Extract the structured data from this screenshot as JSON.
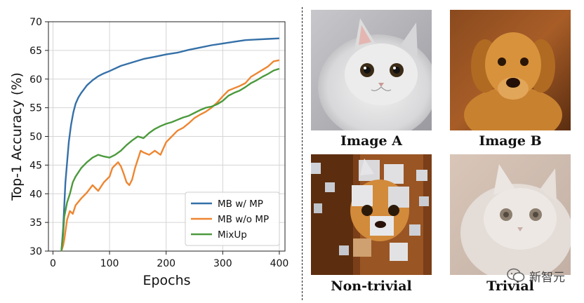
{
  "chart_data": {
    "type": "line",
    "xlabel": "Epochs",
    "ylabel": "Top-1 Accuracy (%)",
    "xlim": [
      -8,
      410
    ],
    "ylim": [
      30,
      70
    ],
    "xticks": [
      0,
      100,
      200,
      300,
      400
    ],
    "yticks": [
      30,
      35,
      40,
      45,
      50,
      55,
      60,
      65,
      70
    ],
    "grid": true,
    "legend_position": "bottom-right",
    "series": [
      {
        "name": "MB w/ MP",
        "color": "#3570a8",
        "x": [
          15,
          18,
          20,
          22,
          25,
          28,
          32,
          36,
          40,
          45,
          50,
          60,
          70,
          80,
          90,
          100,
          120,
          140,
          160,
          180,
          200,
          220,
          240,
          260,
          280,
          300,
          320,
          340,
          360,
          380,
          400
        ],
        "y": [
          30,
          34,
          38,
          42,
          45.5,
          49,
          52,
          54.2,
          55.7,
          56.8,
          57.6,
          58.9,
          59.8,
          60.5,
          61,
          61.4,
          62.3,
          62.9,
          63.5,
          63.9,
          64.3,
          64.6,
          65.1,
          65.5,
          65.9,
          66.2,
          66.5,
          66.8,
          66.9,
          67,
          67.1
        ]
      },
      {
        "name": "MB w/o MP",
        "color": "#ee8631",
        "x": [
          15,
          18,
          20,
          25,
          30,
          35,
          40,
          50,
          60,
          70,
          80,
          90,
          100,
          105,
          110,
          115,
          120,
          125,
          130,
          135,
          140,
          145,
          150,
          155,
          160,
          170,
          180,
          190,
          200,
          210,
          220,
          230,
          240,
          250,
          260,
          270,
          280,
          290,
          300,
          310,
          320,
          330,
          340,
          350,
          360,
          370,
          380,
          390,
          400
        ],
        "y": [
          30,
          31,
          32,
          35.5,
          37,
          36.5,
          38,
          39.2,
          40.2,
          41.5,
          40.5,
          42,
          43,
          44.5,
          45,
          45.5,
          44.8,
          43.5,
          42,
          41.5,
          42.5,
          44.5,
          46,
          47.5,
          47.2,
          46.8,
          47.5,
          46.8,
          49,
          50,
          51,
          51.5,
          52.3,
          53.2,
          53.8,
          54.3,
          55,
          55.9,
          57,
          58,
          58.4,
          58.8,
          59.3,
          60.4,
          61,
          61.6,
          62.2,
          63.1,
          63.3
        ]
      },
      {
        "name": "MixUp",
        "color": "#4c9a3d",
        "x": [
          15,
          18,
          20,
          25,
          30,
          35,
          40,
          50,
          60,
          70,
          80,
          90,
          100,
          110,
          120,
          130,
          140,
          150,
          160,
          170,
          180,
          190,
          200,
          210,
          220,
          230,
          240,
          250,
          260,
          270,
          280,
          290,
          300,
          310,
          320,
          330,
          340,
          350,
          360,
          370,
          380,
          390,
          400
        ],
        "y": [
          30,
          33,
          36,
          38.5,
          40,
          42,
          43,
          44.5,
          45.5,
          46.3,
          46.8,
          46.5,
          46.3,
          46.8,
          47.5,
          48.5,
          49.3,
          50,
          49.7,
          50.6,
          51.3,
          51.8,
          52.2,
          52.5,
          52.9,
          53.3,
          53.6,
          54.1,
          54.6,
          55,
          55.2,
          55.6,
          56.2,
          57.1,
          57.6,
          58,
          58.6,
          59.3,
          59.8,
          60.4,
          60.9,
          61.5,
          61.8
        ]
      }
    ]
  },
  "panels": {
    "image_a": {
      "caption": "Image A",
      "icon": "white-persian-cat-photo"
    },
    "image_b": {
      "caption": "Image B",
      "icon": "golden-retriever-photo"
    },
    "non_trivial": {
      "caption": "Non-trivial",
      "icon": "patch-mixed-cat-dog-photo"
    },
    "trivial": {
      "caption": "Trivial",
      "icon": "faded-cat-blend-photo"
    }
  },
  "watermark": {
    "text": "新智元",
    "icon": "wechat-official-account-icon"
  }
}
